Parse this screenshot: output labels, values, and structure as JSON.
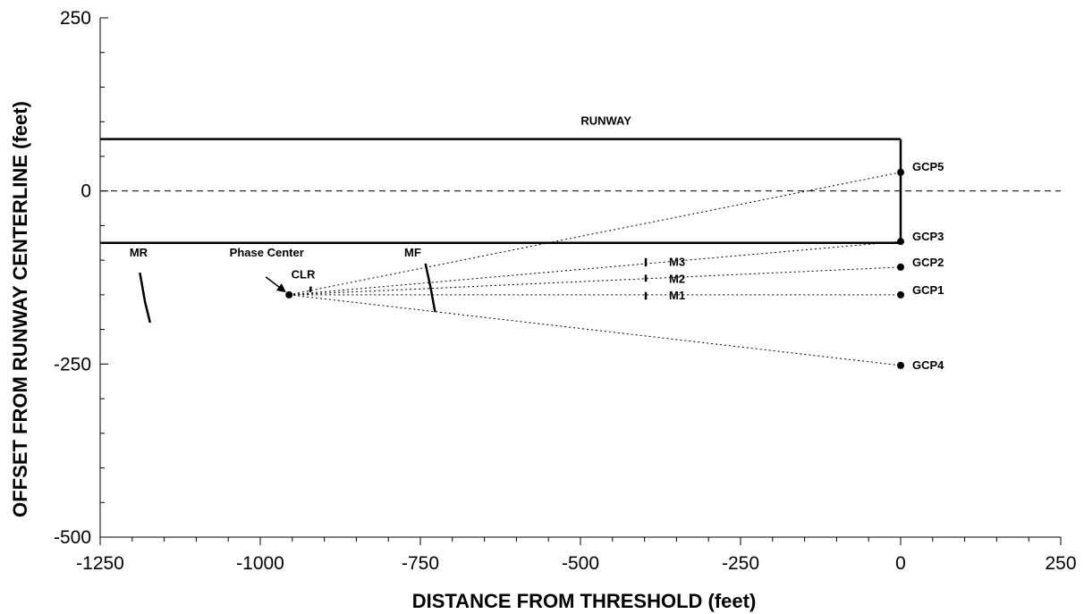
{
  "chart_data": {
    "type": "scatter",
    "title": "",
    "xlabel": "DISTANCE FROM THRESHOLD (feet)",
    "ylabel": "OFFSET FROM RUNWAY CENTERLINE (feet)",
    "xlim": [
      -1250,
      250
    ],
    "ylim": [
      -500,
      250
    ],
    "xticks": [
      -1250,
      -1000,
      -750,
      -500,
      -250,
      0,
      250
    ],
    "yticks": [
      -500,
      -250,
      0,
      250
    ],
    "xtick_labels": [
      "-1250",
      "-1000",
      "-750",
      "-500",
      "-250",
      "0",
      "250"
    ],
    "ytick_labels": [
      "-500",
      "-250",
      "0",
      "250"
    ],
    "grid": false,
    "runway": {
      "label": "RUNWAY",
      "x_start": -1250,
      "x_end": 0,
      "y_top": 75,
      "y_bottom": -75,
      "centerline_y": 0
    },
    "phase_center": {
      "label": "Phase Center",
      "x": -955,
      "y": -150
    },
    "gcps": [
      {
        "name": "GCP5",
        "x": 0,
        "y": 27
      },
      {
        "name": "GCP3",
        "x": 0,
        "y": -73
      },
      {
        "name": "GCP2",
        "x": 0,
        "y": -110
      },
      {
        "name": "GCP1",
        "x": 0,
        "y": -150
      },
      {
        "name": "GCP4",
        "x": 0,
        "y": -252
      }
    ],
    "monitors": [
      {
        "name": "M3",
        "x": -398,
        "y": -102
      },
      {
        "name": "M2",
        "x": -398,
        "y": -126
      },
      {
        "name": "M1",
        "x": -398,
        "y": -150
      }
    ],
    "antenna_labels": [
      {
        "name": "MR",
        "x": -1190,
        "y": -88
      },
      {
        "name": "CLR",
        "x": -933,
        "y": -120
      },
      {
        "name": "MF",
        "x": -762,
        "y": -88
      }
    ],
    "antenna_curves": [
      {
        "name": "MR",
        "points": [
          [
            -1188,
            -118
          ],
          [
            -1180,
            -160
          ],
          [
            -1172,
            -190
          ]
        ]
      },
      {
        "name": "MF",
        "points": [
          [
            -742,
            -105
          ],
          [
            -734,
            -140
          ],
          [
            -727,
            -175
          ]
        ]
      },
      {
        "name": "CLR",
        "points": [
          [
            -921,
            -138
          ],
          [
            -922,
            -146
          ]
        ]
      }
    ],
    "monitor_marks": [
      {
        "name": "M3",
        "x": -398,
        "y1": -97,
        "y2": -109
      },
      {
        "name": "M2",
        "x": -398,
        "y1": -121,
        "y2": -131
      },
      {
        "name": "M1",
        "x": -398,
        "y1": -146,
        "y2": -157
      }
    ]
  }
}
